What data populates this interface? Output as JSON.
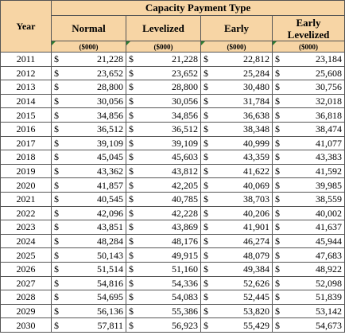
{
  "header": {
    "group_title": "Capacity Payment Type",
    "year_label": "Year",
    "columns": [
      {
        "name": "Normal",
        "unit": "($000)"
      },
      {
        "name": "Levelized",
        "unit": "($000)"
      },
      {
        "name": "Early",
        "unit": "($000)"
      },
      {
        "name": "Early Levelized",
        "unit": "($000)"
      }
    ]
  },
  "currency_symbol": "$",
  "rows": [
    [
      "2011",
      "21,228",
      "21,228",
      "22,812",
      "23,184"
    ],
    [
      "2012",
      "23,652",
      "23,652",
      "25,284",
      "25,608"
    ],
    [
      "2013",
      "28,800",
      "28,800",
      "30,480",
      "30,756"
    ],
    [
      "2014",
      "30,056",
      "30,056",
      "31,784",
      "32,018"
    ],
    [
      "2015",
      "34,856",
      "34,856",
      "36,638",
      "36,818"
    ],
    [
      "2016",
      "36,512",
      "36,512",
      "38,348",
      "38,474"
    ],
    [
      "2017",
      "39,109",
      "39,109",
      "40,999",
      "41,077"
    ],
    [
      "2018",
      "45,045",
      "45,603",
      "43,359",
      "43,383"
    ],
    [
      "2019",
      "43,362",
      "43,812",
      "41,622",
      "41,592"
    ],
    [
      "2020",
      "41,857",
      "42,205",
      "40,069",
      "39,985"
    ],
    [
      "2021",
      "40,545",
      "40,785",
      "38,703",
      "38,559"
    ],
    [
      "2022",
      "42,096",
      "42,228",
      "40,206",
      "40,002"
    ],
    [
      "2023",
      "43,851",
      "43,869",
      "41,901",
      "41,637"
    ],
    [
      "2024",
      "48,284",
      "48,176",
      "46,274",
      "45,944"
    ],
    [
      "2025",
      "50,143",
      "49,915",
      "48,079",
      "47,683"
    ],
    [
      "2026",
      "51,514",
      "51,160",
      "49,384",
      "48,922"
    ],
    [
      "2027",
      "54,816",
      "54,336",
      "52,626",
      "52,098"
    ],
    [
      "2028",
      "54,695",
      "54,083",
      "52,445",
      "51,839"
    ],
    [
      "2029",
      "56,136",
      "55,386",
      "53,820",
      "53,142"
    ],
    [
      "2030",
      "57,811",
      "56,923",
      "55,429",
      "54,673"
    ]
  ]
}
